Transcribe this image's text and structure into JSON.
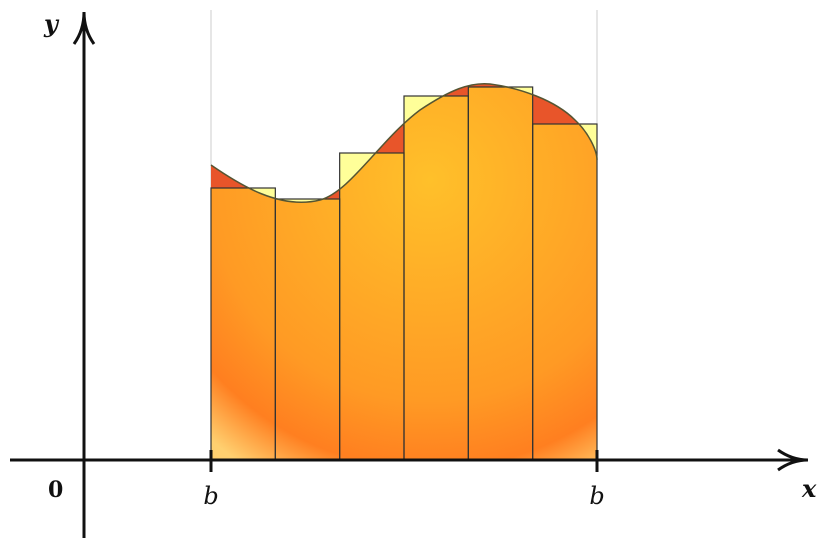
{
  "labels": {
    "y_axis": "y",
    "x_axis": "x",
    "origin": "0",
    "left_bound": "b",
    "right_bound": "b"
  },
  "colors": {
    "area_fill_center": "#ffc02a",
    "area_fill_edge": "#ff7f20",
    "area_fill_glow": "#ffd070",
    "curve_overshoot": "#e8552a",
    "rectangle_excess": "#ffff99",
    "outline": "#333333",
    "axis": "#111111",
    "guide": "#cccccc"
  },
  "rectangle_count": 6
}
